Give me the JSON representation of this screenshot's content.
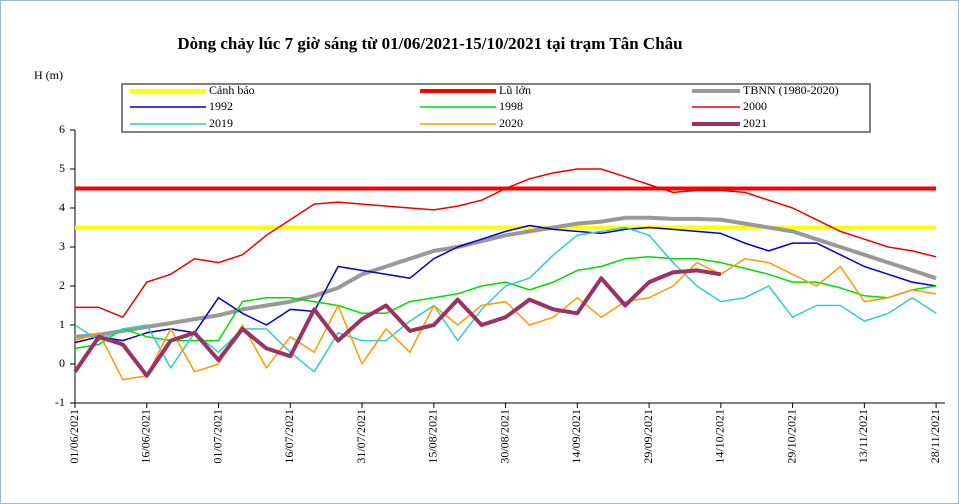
{
  "chart_data": {
    "type": "line",
    "title": "Dòng chảy lúc 7 giờ sáng từ 01/06/2021-15/10/2021 tại trạm Tân Châu",
    "y_label": "H (m)",
    "categories": [
      "01/06/2021",
      null,
      null,
      "16/06/2021",
      null,
      null,
      "01/07/2021",
      null,
      null,
      "16/07/2021",
      null,
      null,
      "31/07/2021",
      null,
      null,
      "15/08/2021",
      null,
      null,
      "30/08/2021",
      null,
      null,
      "14/09/2021",
      null,
      null,
      "29/09/2021",
      null,
      null,
      "14/10/2021",
      null,
      null,
      "29/10/2021",
      null,
      null,
      "13/11/2021",
      null,
      null,
      "28/11/2021"
    ],
    "ylim": [
      -1,
      6
    ],
    "yticks": [
      -1,
      0,
      1,
      2,
      3,
      4,
      5,
      6
    ],
    "series": [
      {
        "name": "Cảnh báo",
        "color": "#ffff00",
        "values": [
          3.5,
          3.5,
          3.5,
          3.5,
          3.5,
          3.5,
          3.5,
          3.5,
          3.5,
          3.5,
          3.5,
          3.5,
          3.5,
          3.5,
          3.5,
          3.5,
          3.5,
          3.5,
          3.5,
          3.5,
          3.5,
          3.5,
          3.5,
          3.5,
          3.5,
          3.5,
          3.5,
          3.5,
          3.5,
          3.5,
          3.5,
          3.5,
          3.5,
          3.5,
          3.5,
          3.5,
          3.5
        ]
      },
      {
        "name": "Lũ lớn",
        "color": "#ff0000",
        "values": [
          4.5,
          4.5,
          4.5,
          4.5,
          4.5,
          4.5,
          4.5,
          4.5,
          4.5,
          4.5,
          4.5,
          4.5,
          4.5,
          4.5,
          4.5,
          4.5,
          4.5,
          4.5,
          4.5,
          4.5,
          4.5,
          4.5,
          4.5,
          4.5,
          4.5,
          4.5,
          4.5,
          4.5,
          4.5,
          4.5,
          4.5,
          4.5,
          4.5,
          4.5,
          4.5,
          4.5,
          4.5
        ]
      },
      {
        "name": "TBNN (1980-2020)",
        "color": "#999999",
        "values": [
          0.7,
          0.75,
          0.85,
          0.95,
          1.05,
          1.15,
          1.25,
          1.4,
          1.5,
          1.6,
          1.75,
          1.95,
          2.3,
          2.5,
          2.7,
          2.9,
          3.0,
          3.15,
          3.3,
          3.4,
          3.5,
          3.6,
          3.65,
          3.75,
          3.75,
          3.72,
          3.72,
          3.7,
          3.6,
          3.5,
          3.4,
          3.2,
          3.0,
          2.8,
          2.6,
          2.4,
          2.2
        ]
      },
      {
        "name": "1992",
        "color": "#0000cc",
        "values": [
          0.55,
          0.7,
          0.6,
          0.8,
          0.9,
          0.8,
          1.7,
          1.3,
          1.0,
          1.4,
          1.35,
          2.5,
          2.4,
          2.3,
          2.2,
          2.7,
          3.0,
          3.2,
          3.4,
          3.55,
          3.45,
          3.4,
          3.35,
          3.45,
          3.5,
          3.45,
          3.4,
          3.35,
          3.1,
          2.9,
          3.1,
          3.1,
          2.8,
          2.5,
          2.3,
          2.1,
          2.0
        ]
      },
      {
        "name": "1998",
        "color": "#00dd00",
        "values": [
          0.4,
          0.5,
          0.9,
          0.7,
          0.6,
          0.6,
          0.6,
          1.6,
          1.7,
          1.7,
          1.6,
          1.5,
          1.3,
          1.3,
          1.6,
          1.7,
          1.8,
          2.0,
          2.1,
          1.9,
          2.1,
          2.4,
          2.5,
          2.7,
          2.75,
          2.7,
          2.7,
          2.6,
          2.45,
          2.3,
          2.1,
          2.1,
          1.95,
          1.75,
          1.7,
          1.9,
          2.0
        ]
      },
      {
        "name": "2000",
        "color": "#ee0000",
        "values": [
          1.45,
          1.45,
          1.2,
          2.1,
          2.3,
          2.7,
          2.6,
          2.8,
          3.3,
          3.7,
          4.1,
          4.15,
          4.1,
          4.05,
          4.0,
          3.95,
          4.05,
          4.2,
          4.5,
          4.75,
          4.9,
          5.0,
          5.0,
          4.8,
          4.6,
          4.4,
          4.45,
          4.45,
          4.4,
          4.2,
          4.0,
          3.7,
          3.4,
          3.2,
          3.0,
          2.9,
          2.75
        ]
      },
      {
        "name": "2019",
        "color": "#33cccc",
        "values": [
          1.0,
          0.6,
          0.9,
          1.0,
          -0.1,
          0.8,
          0.3,
          0.9,
          0.9,
          0.3,
          -0.2,
          0.8,
          0.6,
          0.6,
          1.1,
          1.5,
          0.6,
          1.4,
          2.0,
          2.2,
          2.8,
          3.3,
          3.4,
          3.5,
          3.3,
          2.6,
          2.0,
          1.6,
          1.7,
          2.0,
          1.2,
          1.5,
          1.5,
          1.1,
          1.3,
          1.7,
          1.3
        ]
      },
      {
        "name": "2020",
        "color": "#ff9900",
        "values": [
          0.6,
          0.8,
          -0.4,
          -0.3,
          0.9,
          -0.2,
          0.0,
          1.0,
          -0.1,
          0.7,
          0.3,
          1.5,
          0.0,
          0.9,
          0.3,
          1.5,
          1.0,
          1.5,
          1.6,
          1.0,
          1.2,
          1.7,
          1.2,
          1.6,
          1.7,
          2.0,
          2.6,
          2.3,
          2.7,
          2.6,
          2.3,
          2.0,
          2.5,
          1.6,
          1.7,
          1.9,
          1.8
        ]
      },
      {
        "name": "2021",
        "color": "#993366",
        "values": [
          -0.2,
          0.7,
          0.5,
          -0.3,
          0.6,
          0.8,
          0.1,
          0.9,
          0.4,
          0.2,
          1.4,
          0.6,
          1.15,
          1.5,
          0.85,
          1.0,
          1.65,
          1.0,
          1.2,
          1.65,
          1.4,
          1.3,
          2.2,
          1.5,
          2.1,
          2.35,
          2.4,
          2.3,
          null,
          null,
          null,
          null,
          null,
          null,
          null,
          null,
          null
        ]
      }
    ]
  }
}
